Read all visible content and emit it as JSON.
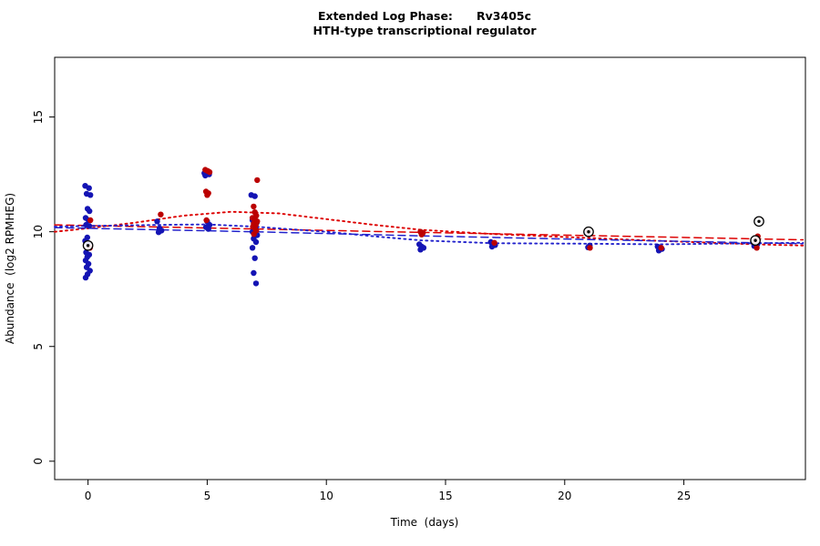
{
  "chart_data": {
    "type": "scatter",
    "title_line1": "Extended Log Phase:      Rv3405c",
    "title_line2": "HTH-type transcriptional regulator",
    "xlabel": "Time  (days)",
    "ylabel": "Abundance  (log2 RPMHEG)",
    "xlim": [
      -1.4,
      30.1
    ],
    "ylim": [
      -0.8,
      17.6
    ],
    "xticks": [
      0,
      5,
      10,
      15,
      20,
      25
    ],
    "yticks": [
      0,
      5,
      10,
      15
    ],
    "grid": false,
    "legend": "none",
    "point_radius": 3.2,
    "colors": {
      "blue_points": "#1414b4",
      "red_points": "#bb0000",
      "red_trend": "#dd0000",
      "blue_trend": "#2222cc",
      "marker": "#000000"
    },
    "series": [
      {
        "name": "blue-replicates",
        "color": "#1414b4",
        "points": [
          [
            -0.12,
            12.0
          ],
          [
            0.04,
            11.9
          ],
          [
            -0.06,
            11.65
          ],
          [
            0.1,
            11.6
          ],
          [
            -0.02,
            11.0
          ],
          [
            0.06,
            10.9
          ],
          [
            -0.1,
            10.6
          ],
          [
            0.02,
            10.5
          ],
          [
            -0.08,
            10.3
          ],
          [
            0.05,
            10.25
          ],
          [
            -0.03,
            9.75
          ],
          [
            -0.12,
            9.6
          ],
          [
            0.0,
            9.45
          ],
          [
            -0.08,
            9.1
          ],
          [
            0.05,
            9.0
          ],
          [
            -0.03,
            8.9
          ],
          [
            -0.1,
            8.75
          ],
          [
            0.02,
            8.6
          ],
          [
            -0.06,
            8.45
          ],
          [
            0.08,
            8.3
          ],
          [
            -0.02,
            8.15
          ],
          [
            -0.1,
            8.0
          ],
          [
            2.9,
            10.45
          ],
          [
            3.0,
            10.15
          ],
          [
            3.08,
            10.05
          ],
          [
            2.96,
            9.98
          ],
          [
            4.88,
            12.55
          ],
          [
            4.98,
            12.6
          ],
          [
            5.08,
            12.5
          ],
          [
            4.92,
            12.45
          ],
          [
            5.0,
            10.45
          ],
          [
            5.1,
            10.3
          ],
          [
            4.95,
            10.2
          ],
          [
            5.05,
            10.12
          ],
          [
            6.85,
            11.6
          ],
          [
            7.0,
            11.55
          ],
          [
            6.9,
            10.5
          ],
          [
            7.08,
            10.4
          ],
          [
            6.95,
            10.2
          ],
          [
            7.05,
            10.1
          ],
          [
            6.9,
            10.0
          ],
          [
            7.0,
            9.95
          ],
          [
            7.1,
            9.85
          ],
          [
            6.95,
            9.7
          ],
          [
            7.05,
            9.55
          ],
          [
            6.9,
            9.3
          ],
          [
            7.0,
            8.85
          ],
          [
            6.95,
            8.2
          ],
          [
            7.05,
            7.75
          ],
          [
            13.9,
            9.45
          ],
          [
            14.0,
            9.35
          ],
          [
            14.08,
            9.3
          ],
          [
            13.95,
            9.22
          ],
          [
            16.9,
            9.55
          ],
          [
            17.0,
            9.5
          ],
          [
            17.08,
            9.42
          ],
          [
            16.95,
            9.35
          ],
          [
            20.92,
            9.95
          ],
          [
            21.05,
            9.4
          ],
          [
            20.98,
            9.32
          ],
          [
            23.9,
            9.35
          ],
          [
            24.0,
            9.3
          ],
          [
            24.08,
            9.25
          ],
          [
            23.95,
            9.18
          ],
          [
            27.9,
            9.55
          ],
          [
            28.0,
            9.5
          ],
          [
            28.08,
            9.45
          ],
          [
            27.95,
            9.38
          ]
        ]
      },
      {
        "name": "red-replicates",
        "color": "#bb0000",
        "points": [
          [
            0.1,
            10.5
          ],
          [
            0.08,
            9.3
          ],
          [
            3.05,
            10.75
          ],
          [
            4.92,
            12.7
          ],
          [
            5.02,
            12.65
          ],
          [
            5.1,
            12.6
          ],
          [
            4.95,
            11.75
          ],
          [
            5.05,
            11.68
          ],
          [
            5.0,
            11.6
          ],
          [
            4.97,
            10.5
          ],
          [
            7.1,
            12.25
          ],
          [
            6.95,
            11.1
          ],
          [
            7.0,
            10.85
          ],
          [
            7.06,
            10.7
          ],
          [
            6.9,
            10.6
          ],
          [
            7.0,
            10.55
          ],
          [
            7.1,
            10.45
          ],
          [
            6.95,
            10.35
          ],
          [
            7.04,
            10.3
          ],
          [
            6.92,
            10.22
          ],
          [
            7.0,
            10.15
          ],
          [
            7.06,
            10.05
          ],
          [
            6.96,
            9.9
          ],
          [
            13.95,
            10.0
          ],
          [
            14.05,
            9.95
          ],
          [
            14.0,
            9.88
          ],
          [
            17.05,
            9.52
          ],
          [
            21.0,
            10.0
          ],
          [
            21.06,
            9.3
          ],
          [
            24.05,
            9.3
          ],
          [
            28.1,
            9.8
          ],
          [
            28.0,
            9.6
          ],
          [
            28.06,
            9.3
          ]
        ]
      }
    ],
    "circled_points": [
      [
        0.0,
        9.4
      ],
      [
        21.0,
        10.0
      ],
      [
        28.15,
        10.45
      ],
      [
        28.0,
        9.62
      ]
    ],
    "trend_lines": [
      {
        "name": "red-dotted-fit",
        "color": "#dd0000",
        "style": "dotted",
        "points": [
          [
            -1.4,
            10.0
          ],
          [
            0,
            10.15
          ],
          [
            2,
            10.4
          ],
          [
            4,
            10.7
          ],
          [
            6,
            10.87
          ],
          [
            8,
            10.8
          ],
          [
            10,
            10.55
          ],
          [
            12,
            10.3
          ],
          [
            14,
            10.08
          ],
          [
            17,
            9.9
          ],
          [
            21,
            9.73
          ],
          [
            24,
            9.6
          ],
          [
            28,
            9.45
          ],
          [
            30,
            9.4
          ]
        ]
      },
      {
        "name": "red-dashed-fit",
        "color": "#dd0000",
        "style": "dashed",
        "points": [
          [
            -1.4,
            10.3
          ],
          [
            7,
            10.12
          ],
          [
            14,
            9.97
          ],
          [
            21,
            9.83
          ],
          [
            30,
            9.65
          ]
        ]
      },
      {
        "name": "blue-dotted-fit",
        "color": "#2222cc",
        "style": "dotted",
        "points": [
          [
            -1.4,
            10.22
          ],
          [
            0,
            10.25
          ],
          [
            3,
            10.3
          ],
          [
            5,
            10.32
          ],
          [
            7,
            10.22
          ],
          [
            10,
            10.0
          ],
          [
            12,
            9.8
          ],
          [
            14,
            9.62
          ],
          [
            17,
            9.5
          ],
          [
            21,
            9.48
          ],
          [
            24,
            9.45
          ],
          [
            28,
            9.5
          ],
          [
            30,
            9.52
          ]
        ]
      },
      {
        "name": "blue-dashed-fit",
        "color": "#2222cc",
        "style": "dashed",
        "points": [
          [
            -1.4,
            10.18
          ],
          [
            7,
            10.0
          ],
          [
            14,
            9.82
          ],
          [
            21,
            9.66
          ],
          [
            30,
            9.48
          ]
        ]
      }
    ]
  }
}
